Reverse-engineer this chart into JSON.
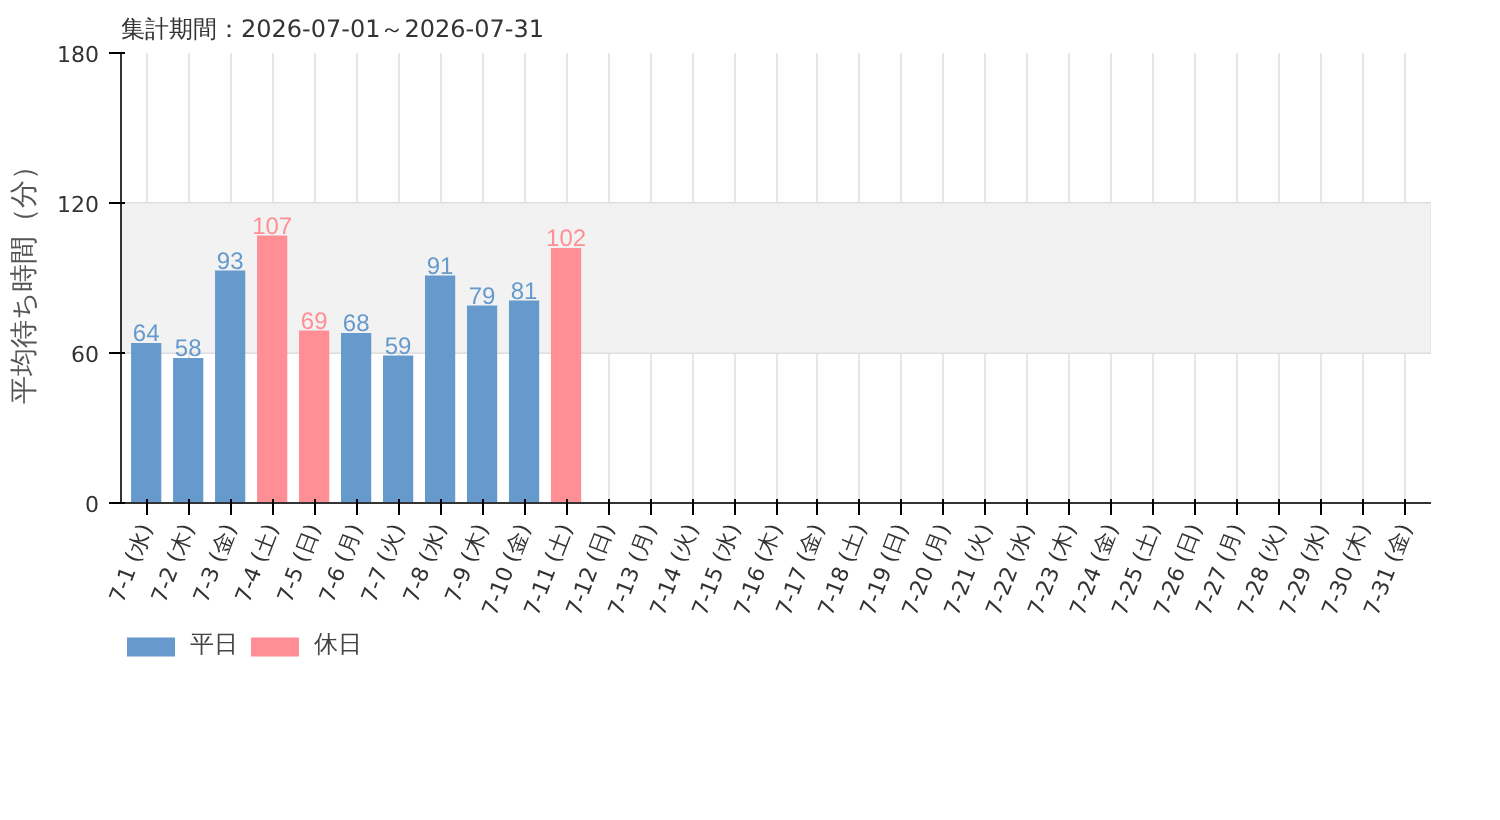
{
  "chart_data": {
    "type": "bar",
    "ylabel": "平均待ち時間（分）",
    "annotations": [
      "集計期間：2026-07-01～2026-07-31"
    ],
    "categories": [
      "7-1 (水)",
      "7-2 (木)",
      "7-3 (金)",
      "7-4 (土)",
      "7-5 (日)",
      "7-6 (月)",
      "7-7 (火)",
      "7-8 (水)",
      "7-9 (木)",
      "7-10 (金)",
      "7-11 (土)",
      "7-12 (日)",
      "7-13 (月)",
      "7-14 (火)",
      "7-15 (水)",
      "7-16 (木)",
      "7-17 (金)",
      "7-18 (土)",
      "7-19 (日)",
      "7-20 (月)",
      "7-21 (火)",
      "7-22 (水)",
      "7-23 (木)",
      "7-24 (金)",
      "7-25 (土)",
      "7-26 (日)",
      "7-27 (月)",
      "7-28 (火)",
      "7-29 (水)",
      "7-30 (木)",
      "7-31 (金)"
    ],
    "series": [
      {
        "name": "平日",
        "color": "#6699cc",
        "values": [
          64,
          58,
          93,
          null,
          null,
          68,
          59,
          91,
          79,
          81,
          null,
          null,
          null,
          null,
          null,
          null,
          null,
          null,
          null,
          null,
          null,
          null,
          null,
          null,
          null,
          null,
          null,
          null,
          null,
          null,
          null
        ]
      },
      {
        "name": "休日",
        "color": "#ff8f94",
        "values": [
          null,
          null,
          null,
          107,
          69,
          null,
          null,
          null,
          null,
          null,
          102,
          null,
          null,
          null,
          null,
          null,
          null,
          null,
          null,
          null,
          null,
          null,
          null,
          null,
          null,
          null,
          null,
          null,
          null,
          null,
          null
        ]
      }
    ],
    "ylim": [
      0,
      180
    ],
    "yticks": [
      0,
      60,
      120,
      180
    ],
    "bands": [
      {
        "axis": "y",
        "from": 60,
        "to": 120,
        "color": "#f2f2f2"
      }
    ],
    "grid": true,
    "legend": "bottom left",
    "data_labels": true
  }
}
